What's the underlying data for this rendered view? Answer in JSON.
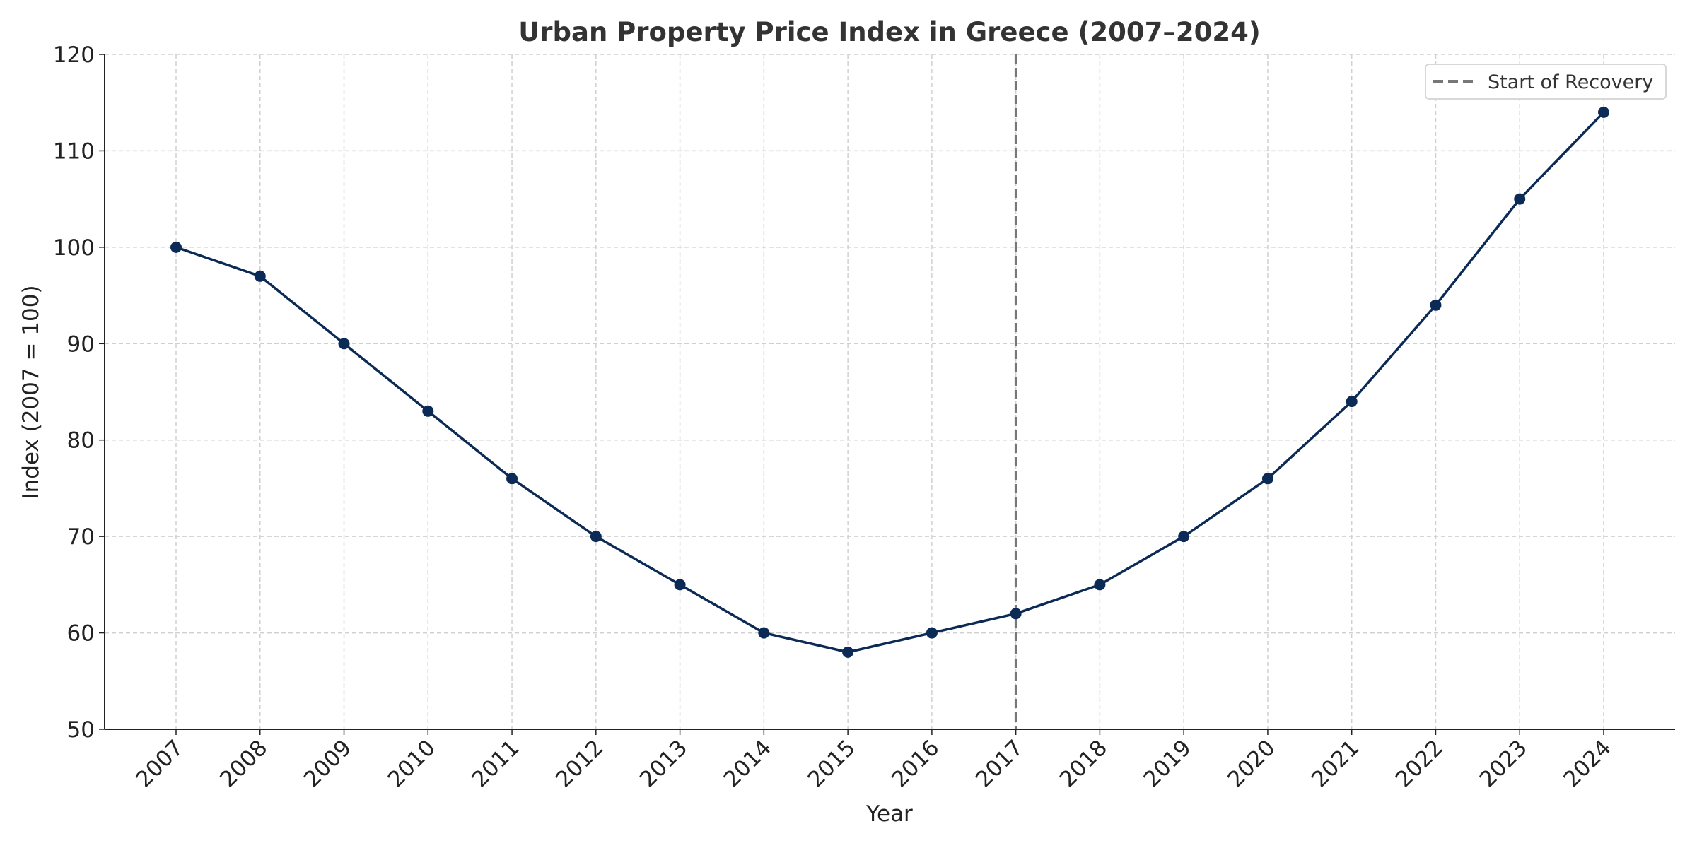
{
  "chart_data": {
    "type": "line",
    "title": "Urban Property Price Index in Greece (2007–2024)",
    "xlabel": "Year",
    "ylabel": "Index (2007 = 100)",
    "x": [
      2007,
      2008,
      2009,
      2010,
      2011,
      2012,
      2013,
      2014,
      2015,
      2016,
      2017,
      2018,
      2019,
      2020,
      2021,
      2022,
      2023,
      2024
    ],
    "series": [
      {
        "values": [
          100,
          97,
          90,
          83,
          76,
          70,
          65,
          60,
          58,
          60,
          62,
          65,
          70,
          76,
          84,
          94,
          105,
          114
        ],
        "color": "#0b2a55",
        "marker": "circle"
      }
    ],
    "ylim": [
      50,
      120
    ],
    "yticks": [
      50,
      60,
      70,
      80,
      90,
      100,
      110,
      120
    ],
    "grid": true,
    "annotations": [
      {
        "type": "vline",
        "x": 2017,
        "label": "Start of Recovery",
        "style": "dashed",
        "color": "#777777"
      }
    ],
    "legend": {
      "placement": "top-right",
      "entries": [
        "Start of Recovery"
      ]
    }
  }
}
